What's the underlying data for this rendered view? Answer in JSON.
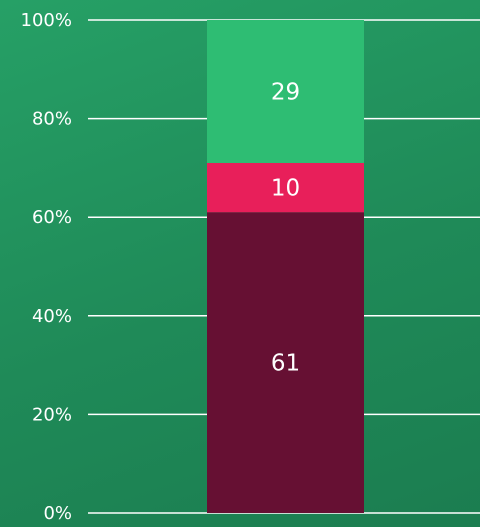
{
  "chart_data": {
    "type": "bar",
    "stacked": true,
    "percent_stacked": true,
    "categories": [
      ""
    ],
    "series": [
      {
        "values": [
          61
        ],
        "color": "#661033",
        "label": "61"
      },
      {
        "values": [
          10
        ],
        "color": "#e81f5a",
        "label": "10"
      },
      {
        "values": [
          29
        ],
        "color": "#2ebd73",
        "label": "29"
      }
    ],
    "ylim": [
      0,
      100
    ],
    "yticks": [
      {
        "value": 0,
        "label": "0%"
      },
      {
        "value": 20,
        "label": "20%"
      },
      {
        "value": 40,
        "label": "40%"
      },
      {
        "value": 60,
        "label": "60%"
      },
      {
        "value": 80,
        "label": "80%"
      },
      {
        "value": 100,
        "label": "100%"
      }
    ],
    "grid": true,
    "legend": "none",
    "background_color": "#22905c"
  }
}
